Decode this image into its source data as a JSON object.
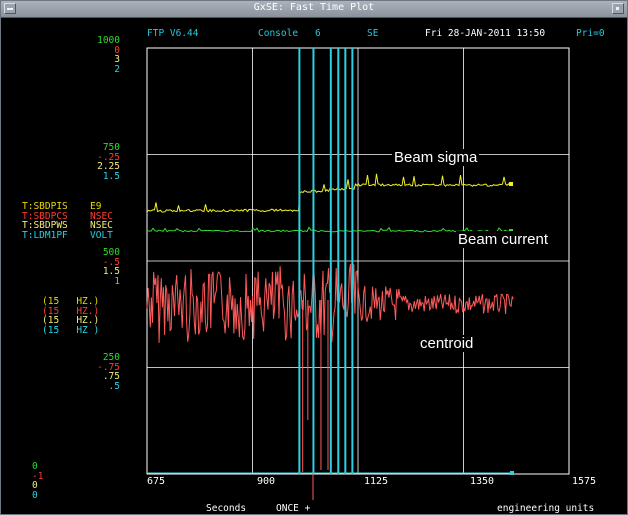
{
  "window": {
    "title": "GxSE: Fast Time Plot"
  },
  "header": {
    "version": "FTP V6.44",
    "console_label": "Console",
    "console_number": "6",
    "mode": "SE",
    "datetime": "Fri 28-JAN-2011 13:50",
    "priority": "Pri=0"
  },
  "scales": [
    {
      "values": [
        "1000",
        "0",
        "3",
        "2"
      ]
    },
    {
      "values": [
        "750",
        "-.25",
        "2.25",
        "1.5"
      ]
    },
    {
      "values": [
        "500",
        "-.5",
        "1.5",
        "1"
      ]
    },
    {
      "values": [
        "250",
        "-.75",
        ".75",
        ".5"
      ]
    },
    {
      "values": [
        "0",
        "-1",
        "0",
        "0"
      ]
    }
  ],
  "channels": [
    {
      "name": "T:SBDPIS",
      "units": "E9",
      "rate": "(15   HZ.)",
      "color": "#e8d800"
    },
    {
      "name": "T:SBDPCS",
      "units": "NSEC",
      "rate": "(15   HZ.)",
      "color": "#ff3a30"
    },
    {
      "name": "T:SBDPWS",
      "units": "NSEC",
      "rate": "(15   HZ.)",
      "color": "#f3ec7a"
    },
    {
      "name": "T:LDM1PF",
      "units": "VOLT",
      "rate": "(15   HZ )",
      "color": "#22d4e8"
    }
  ],
  "colors": {
    "yellow": "#f2ee2a",
    "green": "#2fdc2f",
    "red": "#ff5a5a",
    "cyan": "#2fd0e0",
    "grid": "#ffffff"
  },
  "xaxis": {
    "ticks": [
      "675",
      "900",
      "1125",
      "1350",
      "1575"
    ],
    "min": 675,
    "max": 1575
  },
  "annotations": {
    "sigma": "Beam sigma",
    "current": "Beam current",
    "centroid": "centroid"
  },
  "footer": {
    "xlabel": "Seconds",
    "mode": "ONCE +",
    "units": "engineering units"
  },
  "markers_x": [
    1000,
    1030,
    1067,
    1083,
    1098,
    1113
  ],
  "chart_data": {
    "type": "line",
    "xlim": [
      675,
      1575
    ],
    "series": [
      {
        "name": "T:SBDPIS",
        "approx": [
          [
            675,
            0
          ],
          [
            1575,
            0
          ]
        ]
      },
      {
        "name": "T:SBDPWS",
        "approx": [
          [
            675,
            1.55
          ],
          [
            1000,
            1.6
          ],
          [
            1000,
            1.85
          ],
          [
            1040,
            1.88
          ],
          [
            1090,
            1.95
          ],
          [
            1500,
            1.98
          ]
        ]
      },
      {
        "name": "T:LDM1PF",
        "approx": [
          [
            675,
            1.08
          ],
          [
            1500,
            1.08
          ]
        ]
      },
      {
        "name": "T:SBDPCS",
        "approx": [
          [
            675,
            -0.6
          ],
          [
            1000,
            -0.6
          ],
          [
            1500,
            -0.58
          ]
        ]
      }
    ]
  }
}
